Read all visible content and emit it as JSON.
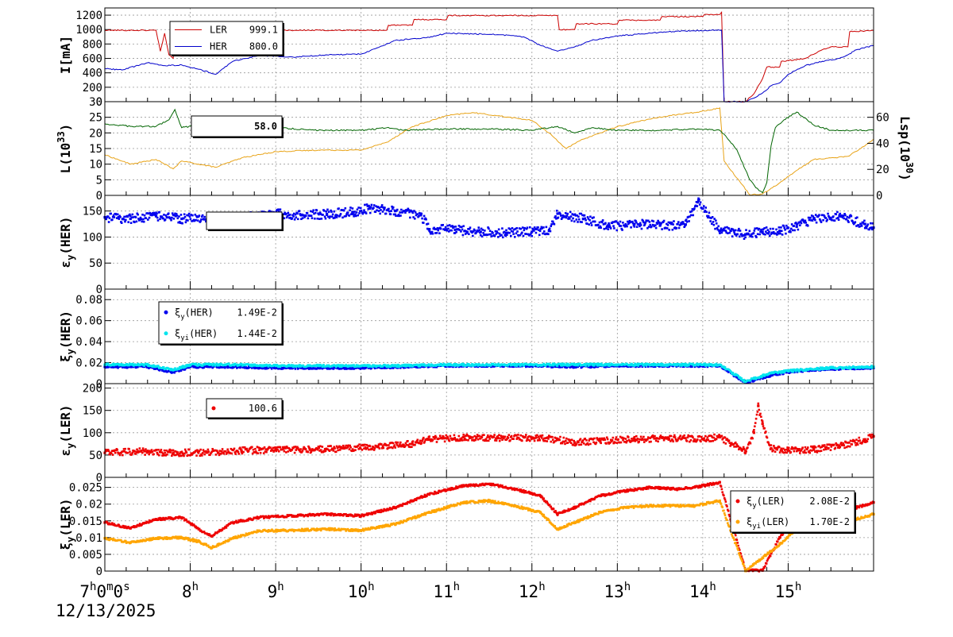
{
  "x_axis": {
    "hours": [
      7,
      8,
      9,
      10,
      11,
      12,
      13,
      14,
      15
    ],
    "first_label": {
      "hour": "7",
      "min": "0",
      "sec": "0",
      "h_unit": "h",
      "m_unit": "m",
      "s_unit": "s"
    },
    "hour_unit": "h",
    "date": "12/13/2025"
  },
  "chart_data": [
    {
      "type": "line",
      "ylabel": "I[mA]",
      "ylim": [
        0,
        1300
      ],
      "yticks": [
        0,
        200,
        400,
        600,
        800,
        1000,
        1200
      ],
      "grid": true,
      "legend": {
        "placement": "top-left",
        "entries": [
          {
            "name": "LER",
            "value": "999.1",
            "color": "#cc0000"
          },
          {
            "name": "HER",
            "value": "800.0",
            "color": "#0000cc"
          }
        ]
      },
      "series": [
        {
          "name": "LER",
          "color": "#cc0000",
          "x": [
            7.0,
            7.6,
            7.65,
            7.7,
            7.75,
            7.8,
            7.85,
            7.9,
            8.0,
            8.2,
            8.5,
            9.0,
            10.0,
            10.3,
            10.32,
            10.6,
            10.62,
            11.0,
            11.02,
            12.3,
            12.32,
            12.5,
            12.52,
            13.0,
            13.02,
            13.5,
            13.52,
            14.0,
            14.02,
            14.2,
            14.22,
            14.25,
            14.5,
            14.6,
            14.65,
            14.7,
            14.75,
            14.9,
            14.92,
            15.2,
            15.4,
            15.5,
            15.7,
            15.72,
            15.9,
            16.0
          ],
          "y": [
            990,
            990,
            700,
            950,
            650,
            600,
            960,
            800,
            990,
            990,
            990,
            990,
            990,
            990,
            1060,
            1060,
            1140,
            1140,
            1195,
            1195,
            1000,
            1000,
            1080,
            1080,
            1130,
            1130,
            1180,
            1180,
            1210,
            1210,
            1240,
            0,
            0,
            110,
            220,
            320,
            480,
            480,
            560,
            600,
            720,
            760,
            760,
            970,
            980,
            990
          ]
        },
        {
          "name": "HER",
          "color": "#0000cc",
          "x": [
            7.0,
            7.2,
            7.5,
            7.7,
            7.9,
            8.1,
            8.3,
            8.5,
            8.8,
            9.2,
            9.6,
            10.0,
            10.2,
            10.4,
            10.8,
            11.0,
            11.3,
            11.6,
            11.9,
            12.1,
            12.3,
            12.5,
            12.7,
            13.0,
            13.3,
            13.6,
            13.9,
            14.1,
            14.22,
            14.25,
            14.5,
            14.6,
            14.7,
            14.8,
            14.9,
            15.0,
            15.2,
            15.4,
            15.6,
            15.7,
            15.8,
            16.0
          ],
          "y": [
            460,
            440,
            540,
            500,
            510,
            450,
            380,
            560,
            640,
            620,
            650,
            660,
            750,
            850,
            890,
            950,
            940,
            930,
            900,
            780,
            700,
            760,
            850,
            910,
            940,
            970,
            985,
            990,
            990,
            0,
            0,
            50,
            120,
            220,
            260,
            380,
            500,
            560,
            600,
            650,
            720,
            780
          ]
        }
      ]
    },
    {
      "type": "line",
      "ylabel": "L(10^33)",
      "ylabel_base": "L(10",
      "ylabel_exp": "33",
      "ylabel_tail": ")",
      "ylim": [
        0,
        30
      ],
      "yticks": [
        0,
        5,
        10,
        15,
        20,
        25,
        30
      ],
      "y2label": "Lsp(10^30)",
      "y2label_base": "Lsp(10",
      "y2label_exp": "30",
      "y2label_tail": ")",
      "y2lim": [
        0,
        72
      ],
      "y2ticks": [
        0,
        20,
        40,
        60
      ],
      "grid": true,
      "legend": {
        "placement": "top-left",
        "entries": [
          {
            "name": "",
            "value": "58.0"
          }
        ]
      },
      "series": [
        {
          "name": "L",
          "color": "#e8a317",
          "axis": "left",
          "x": [
            7.0,
            7.3,
            7.6,
            7.8,
            7.9,
            8.1,
            8.3,
            8.6,
            9.0,
            9.5,
            10.0,
            10.3,
            10.6,
            11.0,
            11.3,
            11.6,
            12.0,
            12.2,
            12.4,
            12.6,
            12.8,
            13.0,
            13.3,
            13.6,
            13.9,
            14.2,
            14.25,
            14.55,
            14.7,
            14.9,
            15.1,
            15.3,
            15.5,
            15.7,
            15.85,
            16.0
          ],
          "y": [
            13,
            10,
            11.5,
            8.5,
            11,
            10,
            9,
            12,
            14,
            14.5,
            14.5,
            17,
            22,
            25.5,
            26.5,
            25.5,
            24,
            20,
            15,
            18,
            20,
            22,
            24,
            25.5,
            26.5,
            28,
            11,
            0.2,
            0.5,
            4,
            8,
            11.5,
            12,
            12.5,
            15,
            18
          ]
        },
        {
          "name": "Lsp",
          "color": "#006400",
          "axis": "right",
          "x": [
            7.0,
            7.3,
            7.6,
            7.75,
            7.82,
            7.9,
            8.2,
            8.5,
            9.0,
            9.5,
            10.0,
            10.3,
            10.5,
            11.0,
            11.5,
            12.0,
            12.3,
            12.5,
            12.7,
            13.0,
            13.5,
            13.9,
            14.2,
            14.25,
            14.4,
            14.55,
            14.62,
            14.7,
            14.75,
            14.8,
            14.85,
            14.95,
            15.1,
            15.3,
            15.5,
            15.7,
            16.0
          ],
          "y": [
            55,
            53,
            53,
            58,
            66,
            52,
            55,
            52,
            52,
            50,
            50,
            52,
            50,
            51,
            51,
            50,
            53,
            48,
            52,
            50,
            50,
            51,
            50,
            47,
            35,
            12,
            6,
            2,
            10,
            38,
            52,
            58,
            64,
            54,
            50,
            50,
            50
          ]
        }
      ]
    },
    {
      "type": "scatter",
      "ylabel": "εy(HER)",
      "ylabel_base": "ε",
      "ylabel_sub": "y",
      "ylabel_tail": "(HER)",
      "ylim": [
        0,
        180
      ],
      "yticks": [
        0,
        50,
        100,
        150
      ],
      "grid": true,
      "legend": {
        "placement": "top-left",
        "entries": []
      },
      "series": [
        {
          "name": "",
          "color": "#0000ee",
          "marker": "square",
          "x": [
            7.0,
            7.3,
            7.6,
            7.9,
            8.2,
            8.5,
            8.8,
            9.0,
            9.3,
            9.6,
            9.9,
            10.1,
            10.4,
            10.7,
            10.8,
            11.1,
            11.4,
            11.7,
            12.0,
            12.2,
            12.3,
            12.6,
            12.9,
            13.2,
            13.5,
            13.8,
            13.95,
            14.2,
            14.5,
            14.7,
            14.9,
            15.1,
            15.3,
            15.6,
            15.9,
            16.0
          ],
          "y": [
            138,
            135,
            140,
            135,
            138,
            136,
            140,
            145,
            142,
            144,
            148,
            155,
            150,
            142,
            115,
            114,
            110,
            108,
            110,
            112,
            145,
            135,
            120,
            125,
            122,
            124,
            170,
            112,
            105,
            110,
            112,
            120,
            135,
            140,
            125,
            118
          ]
        }
      ]
    },
    {
      "type": "scatter",
      "ylabel": "ξy(HER)",
      "ylabel_base": "ξ",
      "ylabel_sub": "y",
      "ylabel_tail": "(HER)",
      "ylim": [
        0,
        0.09
      ],
      "yticks": [
        0,
        0.02,
        0.04,
        0.06,
        0.08
      ],
      "grid": true,
      "legend": {
        "placement": "top-left",
        "entries": [
          {
            "base": "ξ",
            "sub": "y",
            "tail": "(HER)",
            "value": "1.49E-2",
            "color": "#0000ee"
          },
          {
            "base": "ξ",
            "sub": "yi",
            "tail": "(HER)",
            "value": "1.44E-2",
            "color": "#00e5ee"
          }
        ]
      },
      "series": [
        {
          "name": "ξy(HER)",
          "color": "#0000ee",
          "marker": "square",
          "x": [
            7.0,
            7.5,
            7.8,
            8.0,
            8.5,
            9.0,
            9.5,
            10.0,
            10.5,
            11.0,
            11.5,
            12.0,
            12.5,
            13.0,
            13.5,
            14.0,
            14.2,
            14.5,
            14.8,
            15.0,
            15.5,
            16.0
          ],
          "y": [
            0.016,
            0.016,
            0.011,
            0.016,
            0.016,
            0.015,
            0.015,
            0.015,
            0.016,
            0.017,
            0.017,
            0.017,
            0.016,
            0.017,
            0.017,
            0.017,
            0.017,
            0.001,
            0.008,
            0.011,
            0.014,
            0.015
          ]
        },
        {
          "name": "ξyi(HER)",
          "color": "#00e5ee",
          "marker": "square",
          "x": [
            7.0,
            7.5,
            7.8,
            8.0,
            8.5,
            9.0,
            9.5,
            10.0,
            10.5,
            11.0,
            11.5,
            12.0,
            12.5,
            13.0,
            13.5,
            14.0,
            14.2,
            14.5,
            14.8,
            15.0,
            15.5,
            16.0
          ],
          "y": [
            0.018,
            0.018,
            0.013,
            0.018,
            0.018,
            0.017,
            0.017,
            0.017,
            0.017,
            0.018,
            0.018,
            0.018,
            0.018,
            0.018,
            0.018,
            0.018,
            0.018,
            0.002,
            0.01,
            0.012,
            0.015,
            0.016
          ]
        }
      ]
    },
    {
      "type": "scatter",
      "ylabel": "εy(LER)",
      "ylabel_base": "ε",
      "ylabel_sub": "y",
      "ylabel_tail": "(LER)",
      "ylim": [
        0,
        210
      ],
      "yticks": [
        0,
        50,
        100,
        150,
        200
      ],
      "grid": true,
      "legend": {
        "placement": "top-left",
        "entries": [
          {
            "name": "",
            "value": "100.6",
            "color": "#ee0000"
          }
        ]
      },
      "series": [
        {
          "name": "",
          "color": "#ee0000",
          "marker": "square",
          "x": [
            7.0,
            7.4,
            7.8,
            8.2,
            8.6,
            9.0,
            9.4,
            9.8,
            10.2,
            10.6,
            10.8,
            11.2,
            11.6,
            12.0,
            12.3,
            12.5,
            12.8,
            13.2,
            13.6,
            14.0,
            14.2,
            14.5,
            14.6,
            14.65,
            14.7,
            14.8,
            15.0,
            15.3,
            15.6,
            15.9,
            16.0
          ],
          "y": [
            55,
            58,
            55,
            56,
            60,
            62,
            62,
            65,
            68,
            75,
            85,
            90,
            88,
            88,
            85,
            78,
            82,
            85,
            88,
            86,
            90,
            60,
            100,
            160,
            120,
            65,
            60,
            62,
            70,
            85,
            92
          ]
        }
      ]
    },
    {
      "type": "scatter",
      "ylabel": "ξy(LER)",
      "ylabel_base": "ξ",
      "ylabel_sub": "y",
      "ylabel_tail": "(LER)",
      "ylim": [
        0,
        0.028
      ],
      "yticks": [
        0,
        0.005,
        0.01,
        0.015,
        0.02,
        0.025
      ],
      "grid": true,
      "legend": {
        "placement": "right",
        "entries": [
          {
            "base": "ξ",
            "sub": "y",
            "tail": "(LER)",
            "value": "2.08E-2",
            "color": "#ee0000"
          },
          {
            "base": "ξ",
            "sub": "yi",
            "tail": "(LER)",
            "value": "1.70E-2",
            "color": "#ffa500"
          }
        ]
      },
      "series": [
        {
          "name": "ξy(LER)",
          "color": "#ee0000",
          "marker": "square",
          "x": [
            7.0,
            7.3,
            7.6,
            7.9,
            8.1,
            8.25,
            8.5,
            8.8,
            9.2,
            9.6,
            10.0,
            10.4,
            10.8,
            11.2,
            11.5,
            11.8,
            12.1,
            12.3,
            12.5,
            12.8,
            13.1,
            13.4,
            13.7,
            13.9,
            14.2,
            14.5,
            14.7,
            14.9,
            15.1,
            15.4,
            15.6,
            15.8,
            16.0
          ],
          "y": [
            0.0145,
            0.0128,
            0.0155,
            0.016,
            0.0125,
            0.0105,
            0.0145,
            0.016,
            0.0165,
            0.017,
            0.0165,
            0.019,
            0.023,
            0.0255,
            0.026,
            0.0245,
            0.0225,
            0.017,
            0.019,
            0.0225,
            0.024,
            0.025,
            0.0245,
            0.025,
            0.0265,
            0.0003,
            0.0002,
            0.01,
            0.0165,
            0.0185,
            0.018,
            0.019,
            0.0205
          ]
        },
        {
          "name": "ξyi(LER)",
          "color": "#ffa500",
          "marker": "square",
          "x": [
            7.0,
            7.3,
            7.6,
            7.9,
            8.1,
            8.25,
            8.5,
            8.8,
            9.2,
            9.6,
            10.0,
            10.4,
            10.8,
            11.2,
            11.5,
            11.8,
            12.1,
            12.3,
            12.5,
            12.8,
            13.1,
            13.4,
            13.7,
            13.9,
            14.2,
            14.5,
            14.7,
            14.9,
            15.1,
            15.4,
            15.6,
            15.8,
            16.0
          ],
          "y": [
            0.0098,
            0.0085,
            0.0098,
            0.01,
            0.0088,
            0.007,
            0.0098,
            0.012,
            0.0122,
            0.0125,
            0.0122,
            0.014,
            0.0175,
            0.0205,
            0.021,
            0.0195,
            0.0175,
            0.0125,
            0.0145,
            0.0175,
            0.019,
            0.0195,
            0.0195,
            0.0195,
            0.021,
            0.0001,
            0.004,
            0.008,
            0.0125,
            0.013,
            0.014,
            0.0155,
            0.017
          ]
        }
      ]
    }
  ]
}
